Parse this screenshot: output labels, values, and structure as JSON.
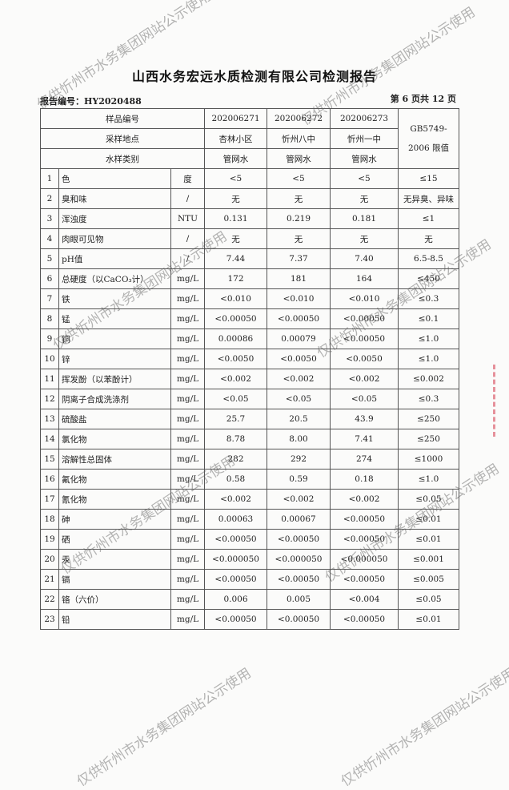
{
  "title": "山西水务宏远水质检测有限公司检测报告",
  "report_no": "报告编号：HY2020488",
  "page_info": "第 6 页共 12 页",
  "watermark": "仅供忻州市水务集团网站公示使用",
  "header": {
    "sample_no_label": "样品编号",
    "location_label": "采样地点",
    "type_label": "水样类别",
    "standard_label": "GB5749-2006 限值",
    "samples": [
      {
        "no": "202006271",
        "location": "杏林小区",
        "type": "管网水"
      },
      {
        "no": "202006272",
        "location": "忻州八中",
        "type": "管网水"
      },
      {
        "no": "202006273",
        "location": "忻州一中",
        "type": "管网水"
      }
    ]
  },
  "rows": [
    [
      "1",
      "色",
      "度",
      "<5",
      "<5",
      "<5",
      "≤15"
    ],
    [
      "2",
      "臭和味",
      "/",
      "无",
      "无",
      "无",
      "无异臭、异味"
    ],
    [
      "3",
      "浑浊度",
      "NTU",
      "0.131",
      "0.219",
      "0.181",
      "≤1"
    ],
    [
      "4",
      "肉眼可见物",
      "/",
      "无",
      "无",
      "无",
      "无"
    ],
    [
      "5",
      "pH值",
      "/",
      "7.44",
      "7.37",
      "7.40",
      "6.5-8.5"
    ],
    [
      "6",
      "总硬度（以CaCO₃计）",
      "mg/L",
      "172",
      "181",
      "164",
      "≤450"
    ],
    [
      "7",
      "铁",
      "mg/L",
      "<0.010",
      "<0.010",
      "<0.010",
      "≤0.3"
    ],
    [
      "8",
      "锰",
      "mg/L",
      "<0.00050",
      "<0.00050",
      "<0.00050",
      "≤0.1"
    ],
    [
      "9",
      "铜",
      "mg/L",
      "0.00086",
      "0.00079",
      "<0.00050",
      "≤1.0"
    ],
    [
      "10",
      "锌",
      "mg/L",
      "<0.0050",
      "<0.0050",
      "<0.0050",
      "≤1.0"
    ],
    [
      "11",
      "挥发酚（以苯酚计）",
      "mg/L",
      "<0.002",
      "<0.002",
      "<0.002",
      "≤0.002"
    ],
    [
      "12",
      "阴离子合成洗涤剂",
      "mg/L",
      "<0.05",
      "<0.05",
      "<0.05",
      "≤0.3"
    ],
    [
      "13",
      "硫酸盐",
      "mg/L",
      "25.7",
      "20.5",
      "43.9",
      "≤250"
    ],
    [
      "14",
      "氯化物",
      "mg/L",
      "8.78",
      "8.00",
      "7.41",
      "≤250"
    ],
    [
      "15",
      "溶解性总固体",
      "mg/L",
      "282",
      "292",
      "274",
      "≤1000"
    ],
    [
      "16",
      "氟化物",
      "mg/L",
      "0.58",
      "0.59",
      "0.18",
      "≤1.0"
    ],
    [
      "17",
      "氰化物",
      "mg/L",
      "<0.002",
      "<0.002",
      "<0.002",
      "≤0.05"
    ],
    [
      "18",
      "砷",
      "mg/L",
      "0.00063",
      "0.00067",
      "<0.00050",
      "≤0.01"
    ],
    [
      "19",
      "硒",
      "mg/L",
      "<0.00050",
      "<0.00050",
      "<0.00050",
      "≤0.01"
    ],
    [
      "20",
      "汞",
      "mg/L",
      "<0.000050",
      "<0.000050",
      "<0.000050",
      "≤0.001"
    ],
    [
      "21",
      "镉",
      "mg/L",
      "<0.00050",
      "<0.00050",
      "<0.00050",
      "≤0.005"
    ],
    [
      "22",
      "铬（六价）",
      "mg/L",
      "0.006",
      "0.005",
      "<0.004",
      "≤0.05"
    ],
    [
      "23",
      "铅",
      "mg/L",
      "<0.00050",
      "<0.00050",
      "<0.00050",
      "≤0.01"
    ]
  ]
}
